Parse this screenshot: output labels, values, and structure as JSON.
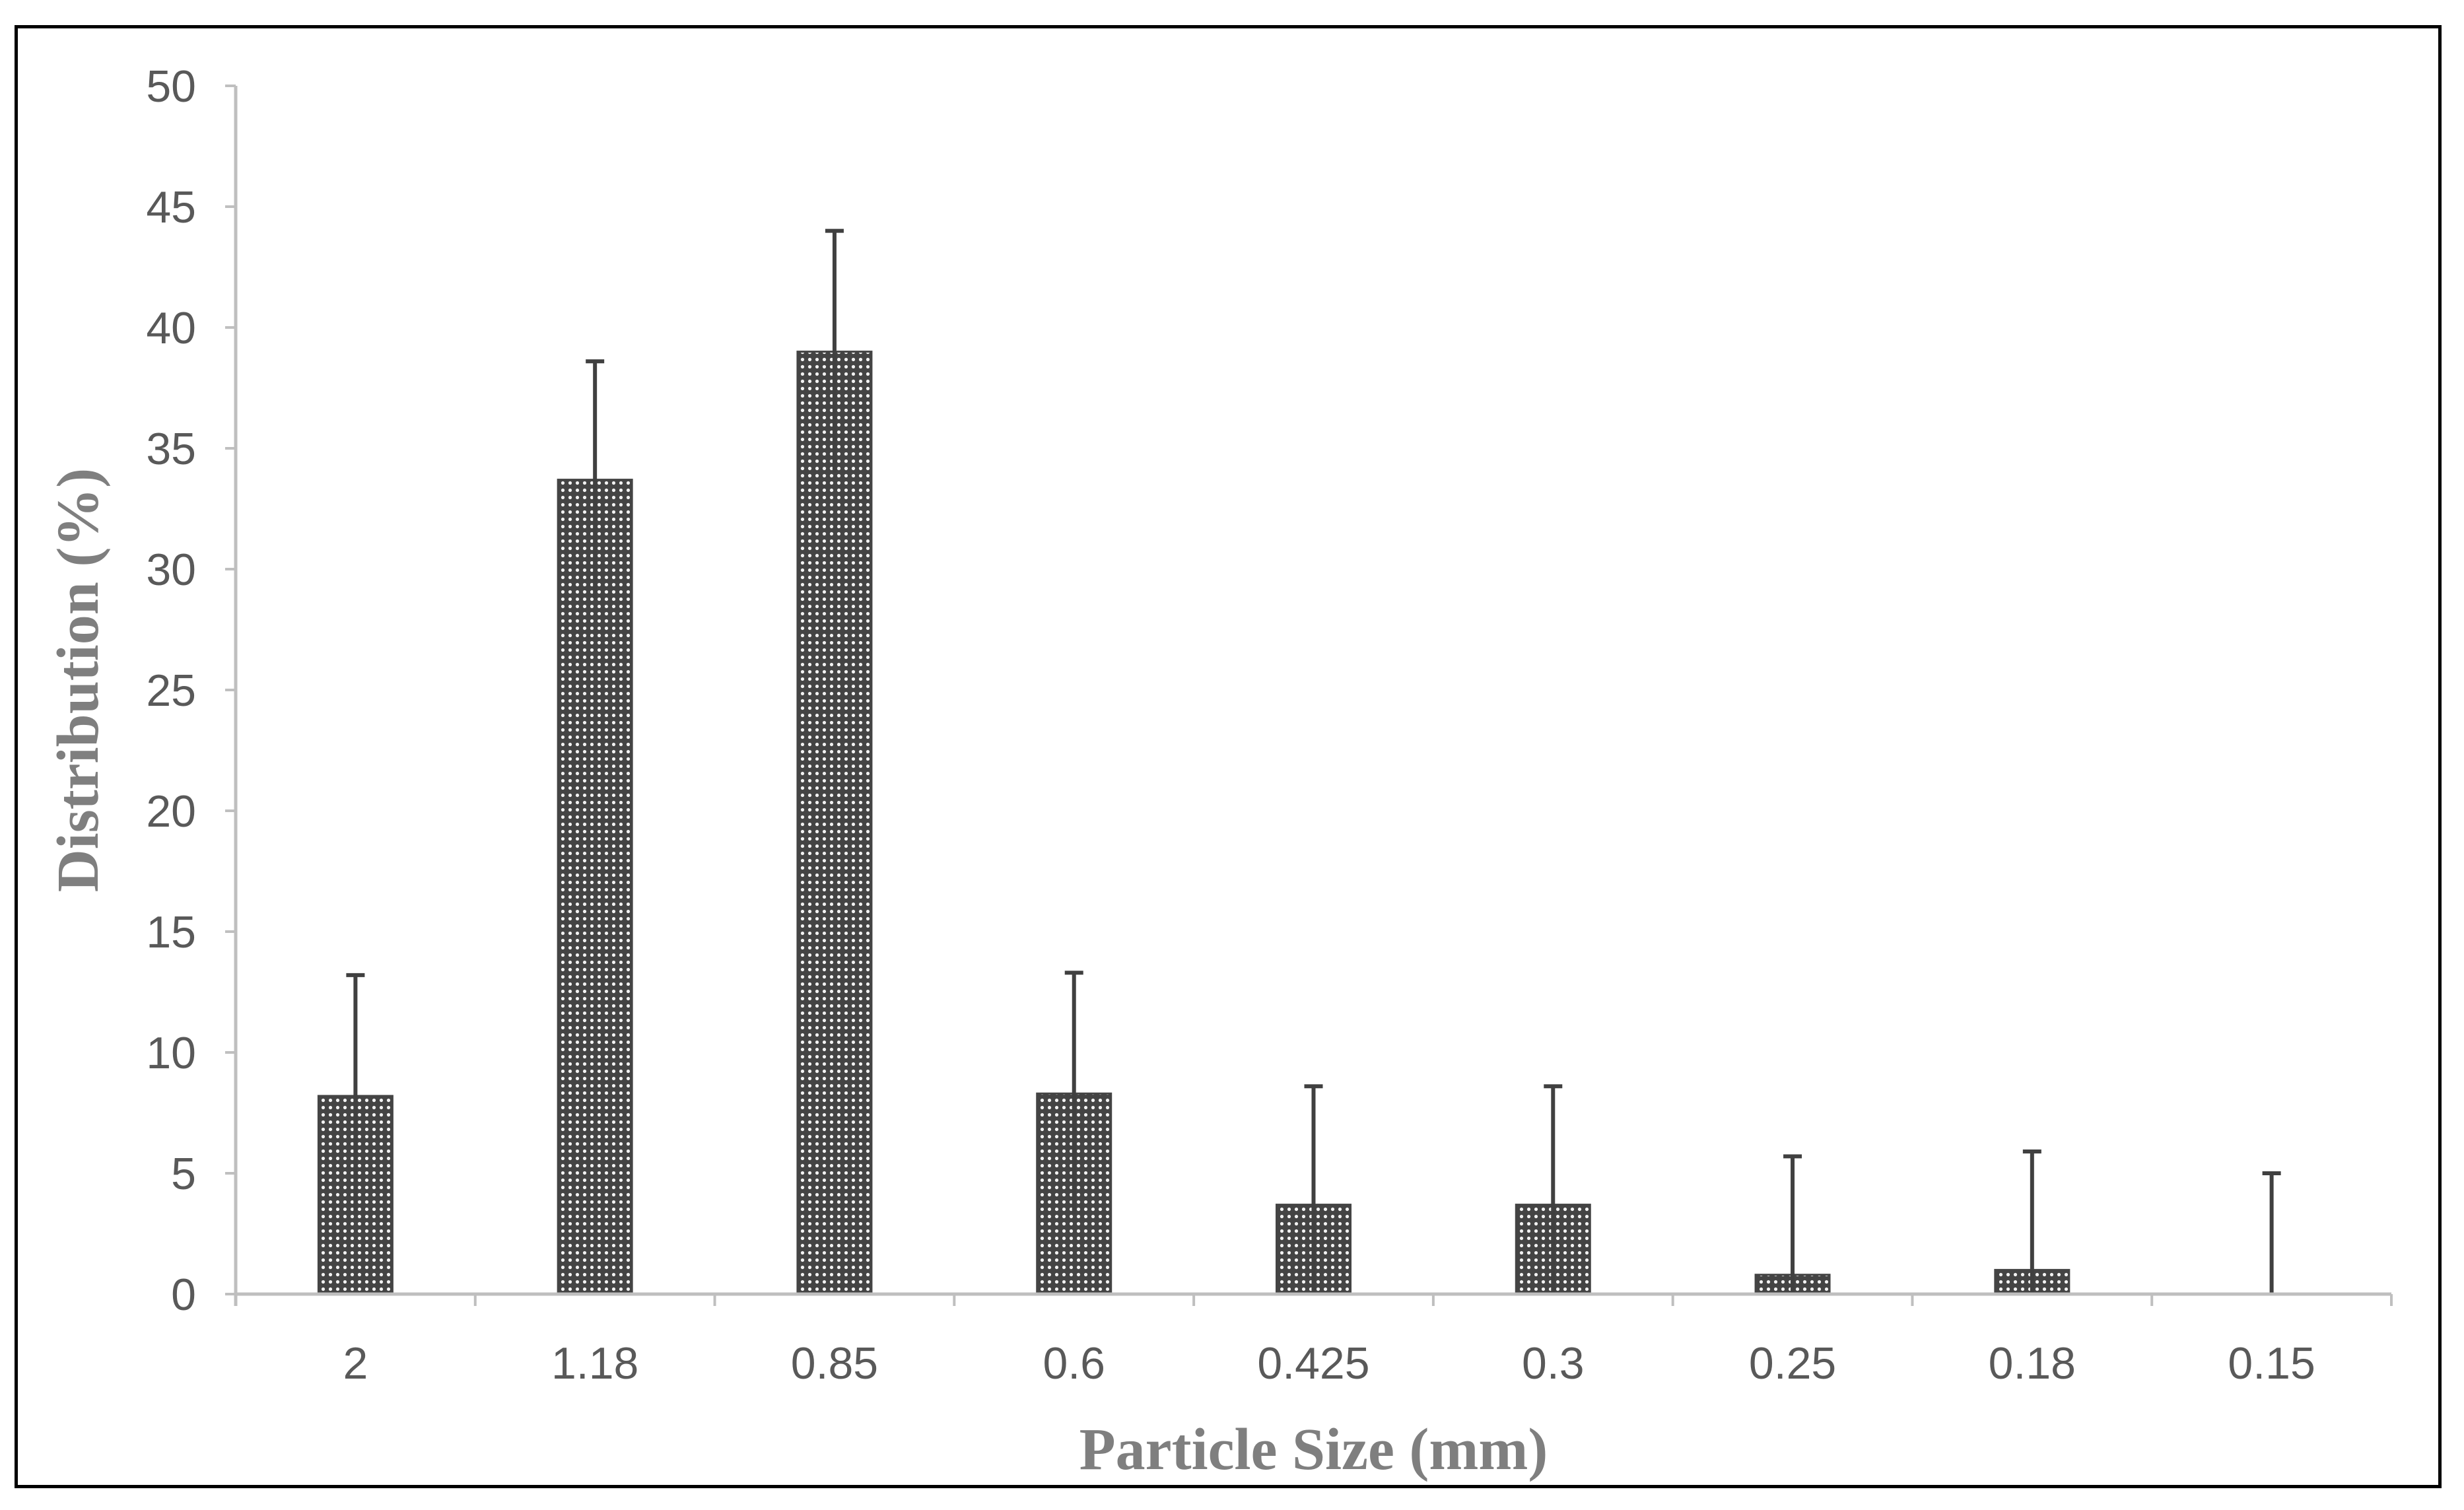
{
  "chart_data": {
    "type": "bar",
    "title": "",
    "xlabel": "Particle Size (mm)",
    "ylabel": "Distribution (%)",
    "categories": [
      "2",
      "1.18",
      "0.85",
      "0.6",
      "0.425",
      "0.3",
      "0.25",
      "0.18",
      "0.15"
    ],
    "values": [
      8.2,
      33.7,
      39.0,
      8.3,
      3.7,
      3.7,
      0.8,
      1.0,
      0.0
    ],
    "error_upper": [
      13.2,
      38.6,
      44.0,
      13.3,
      8.6,
      8.6,
      5.7,
      5.9,
      5.0
    ],
    "error_lower": [
      3.3,
      28.8,
      34.0,
      3.3,
      0.0,
      0.0,
      0.0,
      0.0,
      0.0
    ],
    "ylim": [
      0,
      50
    ],
    "yticks": [
      "0",
      "5",
      "10",
      "15",
      "20",
      "25",
      "30",
      "35",
      "40",
      "45",
      "50"
    ],
    "grid": false,
    "legend": "none",
    "colors": {
      "bar_fill": "#444444",
      "bar_dot": "#f2f2f2",
      "axis": "#bfbfbf",
      "error_bar": "#404040",
      "tick_text": "#595959",
      "title_text": "#7f7f7f"
    }
  }
}
